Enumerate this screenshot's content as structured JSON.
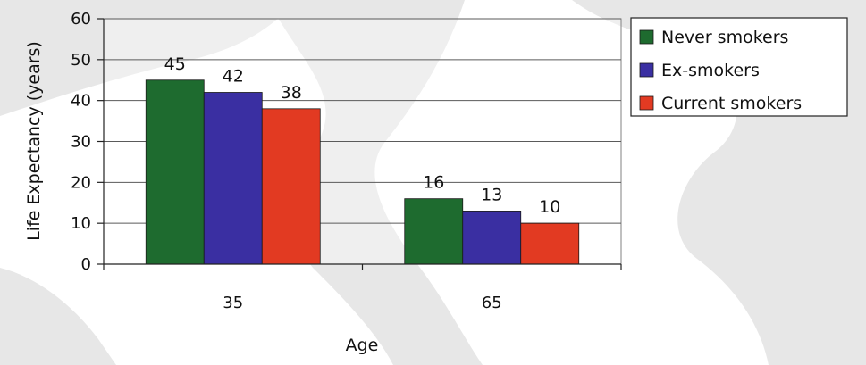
{
  "chart_data": {
    "type": "bar",
    "title": "",
    "xlabel": "Age",
    "ylabel": "Life Expectancy (years)",
    "categories": [
      "35",
      "65"
    ],
    "ylim": [
      0,
      60
    ],
    "yticks": [
      0,
      10,
      20,
      30,
      40,
      50,
      60
    ],
    "grid": true,
    "legend_position": "right",
    "series": [
      {
        "name": "Never smokers",
        "color": "#1e6b2f",
        "values": [
          45,
          16
        ]
      },
      {
        "name": "Ex-smokers",
        "color": "#3a2fa2",
        "values": [
          42,
          13
        ]
      },
      {
        "name": "Current smokers",
        "color": "#e23a22",
        "values": [
          38,
          10
        ]
      }
    ]
  }
}
